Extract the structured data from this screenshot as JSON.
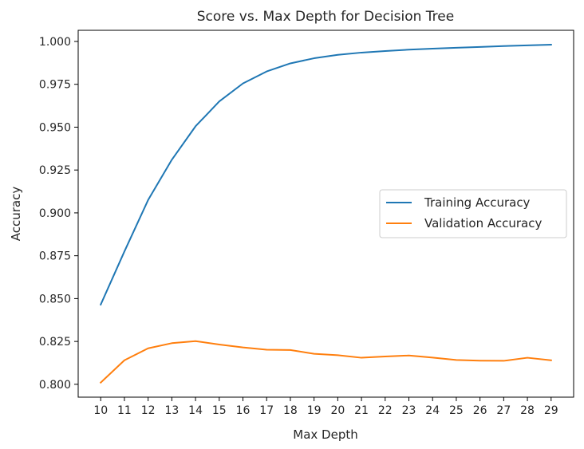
{
  "chart_data": {
    "type": "line",
    "title": "Score vs. Max Depth for Decision Tree",
    "xlabel": "Max Depth",
    "ylabel": "Accuracy",
    "x": [
      10,
      11,
      12,
      13,
      14,
      15,
      16,
      17,
      18,
      19,
      20,
      21,
      22,
      23,
      24,
      25,
      26,
      27,
      28,
      29
    ],
    "xticks": [
      "10",
      "11",
      "12",
      "13",
      "14",
      "15",
      "16",
      "17",
      "18",
      "19",
      "20",
      "21",
      "22",
      "23",
      "24",
      "25",
      "26",
      "27",
      "28",
      "29"
    ],
    "xlim": [
      9.05,
      29.95
    ],
    "ylim": [
      0.7925,
      1.0065
    ],
    "yticks": [
      0.8,
      0.825,
      0.85,
      0.875,
      0.9,
      0.925,
      0.95,
      0.975,
      1.0
    ],
    "ytick_labels": [
      "0.800",
      "0.825",
      "0.850",
      "0.875",
      "0.900",
      "0.925",
      "0.950",
      "0.975",
      "1.000"
    ],
    "grid": false,
    "legend_position": "center-right",
    "series": [
      {
        "name": "Training Accuracy",
        "color": "#1f77b4",
        "values": [
          0.8465,
          0.8775,
          0.9075,
          0.931,
          0.9505,
          0.965,
          0.9755,
          0.9825,
          0.9872,
          0.9902,
          0.9922,
          0.9935,
          0.9944,
          0.9952,
          0.9958,
          0.9963,
          0.9968,
          0.9973,
          0.9977,
          0.9981
        ]
      },
      {
        "name": "Validation Accuracy",
        "color": "#ff7f0e",
        "values": [
          0.801,
          0.814,
          0.821,
          0.824,
          0.8252,
          0.8232,
          0.8215,
          0.8202,
          0.82,
          0.8178,
          0.817,
          0.8155,
          0.8162,
          0.8168,
          0.8156,
          0.8142,
          0.8138,
          0.8137,
          0.8155,
          0.814
        ]
      }
    ]
  }
}
